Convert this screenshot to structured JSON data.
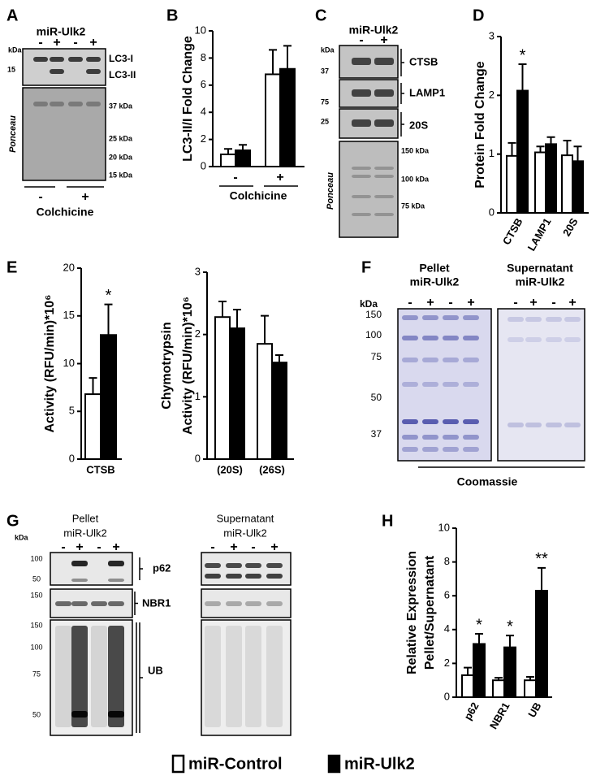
{
  "panel_labels": [
    "A",
    "B",
    "C",
    "D",
    "E",
    "F",
    "G",
    "H"
  ],
  "chart_data": [
    {
      "type": "bar",
      "ylabel": "LC3-II/I Fold Change",
      "categories": [
        "-",
        "+"
      ],
      "xlabel": "Colchicine",
      "ylim": [
        0,
        10
      ],
      "yticks": [
        0,
        2,
        4,
        6,
        8,
        10
      ],
      "series": [
        {
          "name": "miR-Control",
          "color": "#ffffff",
          "values": [
            0.9,
            6.8
          ],
          "errors": [
            0.4,
            1.8
          ]
        },
        {
          "name": "miR-Ulk2",
          "color": "#000000",
          "values": [
            1.2,
            7.2
          ],
          "errors": [
            0.4,
            1.7
          ]
        }
      ]
    },
    {
      "type": "bar",
      "ylabel": "Protein Fold Change",
      "categories": [
        "CTSB",
        "LAMP1",
        "20S"
      ],
      "ylim": [
        0,
        3
      ],
      "yticks": [
        0,
        1,
        2,
        3
      ],
      "significance": [
        "*",
        null,
        null
      ],
      "series": [
        {
          "color": "#ffffff",
          "values": [
            0.97,
            1.03,
            0.98
          ],
          "errors": [
            0.22,
            0.1,
            0.25
          ]
        },
        {
          "color": "#000000",
          "values": [
            2.08,
            1.17,
            0.88
          ],
          "errors": [
            0.45,
            0.12,
            0.25
          ]
        }
      ]
    },
    {
      "type": "bar",
      "ylabel": "Activity (RFU/min)*10⁶",
      "categories": [
        "CTSB"
      ],
      "ylim": [
        0,
        20
      ],
      "yticks": [
        0,
        5,
        10,
        15,
        20
      ],
      "significance": [
        "*"
      ],
      "series": [
        {
          "color": "#ffffff",
          "values": [
            6.8
          ],
          "errors": [
            1.7
          ]
        },
        {
          "color": "#000000",
          "values": [
            13.0
          ],
          "errors": [
            3.2
          ]
        }
      ]
    },
    {
      "type": "bar",
      "ylabel": [
        "Chymotrypsin",
        "Activity (RFU/min)*10⁶"
      ],
      "categories": [
        "(20S)",
        "(26S)"
      ],
      "ylim": [
        0,
        3
      ],
      "yticks": [
        0,
        1,
        2,
        3
      ],
      "series": [
        {
          "color": "#ffffff",
          "values": [
            2.28,
            1.85
          ],
          "errors": [
            0.25,
            0.45
          ]
        },
        {
          "color": "#000000",
          "values": [
            2.1,
            1.55
          ],
          "errors": [
            0.3,
            0.12
          ]
        }
      ]
    },
    {
      "type": "bar",
      "ylabel": [
        "Relative Expression",
        "Pellet/Supernatant"
      ],
      "categories": [
        "p62",
        "NBR1",
        "UB"
      ],
      "ylim": [
        0,
        10
      ],
      "yticks": [
        0,
        2,
        4,
        6,
        8,
        10
      ],
      "significance": [
        "*",
        "*",
        "**"
      ],
      "series": [
        {
          "color": "#ffffff",
          "values": [
            1.3,
            1.0,
            1.0
          ],
          "errors": [
            0.45,
            0.15,
            0.2
          ]
        },
        {
          "color": "#000000",
          "values": [
            3.15,
            2.95,
            6.3
          ],
          "errors": [
            0.6,
            0.7,
            1.35
          ]
        }
      ]
    }
  ],
  "blots": {
    "A": {
      "header": "miR-Ulk2",
      "lanes": [
        "-",
        "+",
        "-",
        "+"
      ],
      "kda": "kDa",
      "markers": [
        "15"
      ],
      "bands": [
        "LC3-I",
        "LC3-II"
      ],
      "stain": "Ponceau",
      "stain_markers": [
        "37 kDa",
        "25 kDa",
        "20 kDa",
        "15 kDa"
      ],
      "treatment_lanes": [
        "-",
        "+"
      ],
      "treatment": "Colchicine"
    },
    "C": {
      "header": "miR-Ulk2",
      "lanes": [
        "-",
        "+"
      ],
      "kda": "kDa",
      "markers": [
        "37",
        "75",
        "25"
      ],
      "bands": [
        "CTSB",
        "LAMP1",
        "20S"
      ],
      "stain": "Ponceau",
      "stain_markers": [
        "150 kDa",
        "100 kDa",
        "75 kDa"
      ]
    },
    "F": {
      "groups": [
        {
          "title": "Pellet",
          "header": "miR-Ulk2",
          "lanes": [
            "-",
            "+",
            "-",
            "+"
          ]
        },
        {
          "title": "Supernatant",
          "header": "miR-Ulk2",
          "lanes": [
            "-",
            "+",
            "-",
            "+"
          ]
        }
      ],
      "kda": "kDa",
      "markers": [
        "150",
        "100",
        "75",
        "50",
        "37"
      ],
      "stain": "Coomassie"
    },
    "G": {
      "groups": [
        {
          "title": "Pellet",
          "header": "miR-Ulk2",
          "lanes": [
            "-",
            "+",
            "-",
            "+"
          ]
        },
        {
          "title": "Supernatant",
          "header": "miR-Ulk2",
          "lanes": [
            "-",
            "+",
            "-",
            "+"
          ]
        }
      ],
      "kda": "kDa",
      "markers": [
        "100",
        "50",
        "150",
        "150",
        "100",
        "75",
        "50"
      ],
      "bands": [
        "p62",
        "NBR1",
        "UB"
      ]
    }
  }
}
